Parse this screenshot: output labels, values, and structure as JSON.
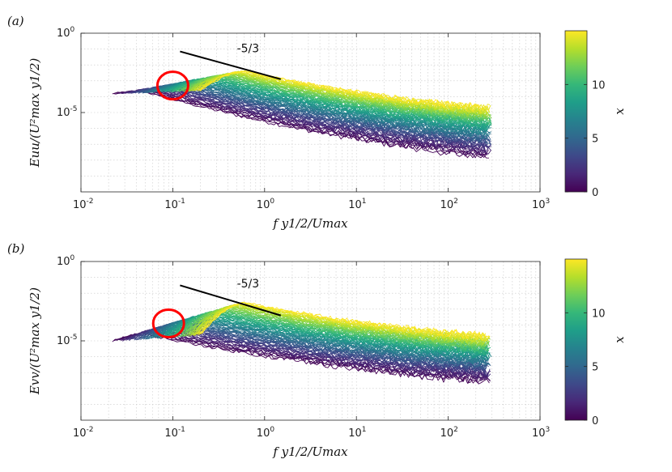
{
  "colors": {
    "viridis": [
      "#440154",
      "#482878",
      "#3e4989",
      "#31688e",
      "#26828e",
      "#1f9e89",
      "#35b779",
      "#6ece58",
      "#b5de2b",
      "#fde725"
    ],
    "circle": "#ff0000",
    "slope_line": "#000000"
  },
  "chart_data": [
    {
      "type": "line",
      "panel_label": "(a)",
      "xscale": "log",
      "yscale": "log",
      "xlim": [
        0.01,
        1000
      ],
      "ylim_exponent": [
        -10,
        0
      ],
      "x_ticks": [
        {
          "base": "10",
          "exp": "-2"
        },
        {
          "base": "10",
          "exp": "-1"
        },
        {
          "base": "10",
          "exp": "0"
        },
        {
          "base": "10",
          "exp": "1"
        },
        {
          "base": "10",
          "exp": "2"
        },
        {
          "base": "10",
          "exp": "3"
        }
      ],
      "y_ticks": [
        {
          "base": "10",
          "exp": "0",
          "value": 0
        },
        {
          "base": "10",
          "exp": "-5",
          "value": -5
        }
      ],
      "xlabel": "f y1/2/Umax",
      "ylabel": "Euu/(U²max y1/2)",
      "grid": true,
      "slope_annotation": {
        "label": "-5/3",
        "x_start": 0.12,
        "y_start_exp": -1.15,
        "x_end": 1.5,
        "y_end_exp": -2.9
      },
      "circle_annotation": {
        "x_center": 0.1,
        "y_center_exp": -3.3,
        "color": "red"
      },
      "curves": {
        "count": 90,
        "x_start_range": [
          0.022,
          0.2
        ],
        "x_end": 270,
        "y_start_exp_range": [
          -3.8,
          -3.6
        ],
        "peak_exp_range": [
          -3.7,
          -2.4
        ],
        "end_exp_range": [
          -7.8,
          -4.7
        ]
      },
      "colorbar": {
        "label": "x",
        "min": 0,
        "max": 15,
        "ticks": [
          "0",
          "5",
          "10"
        ],
        "colormap": "viridis"
      }
    },
    {
      "type": "line",
      "panel_label": "(b)",
      "xscale": "log",
      "yscale": "log",
      "xlim": [
        0.01,
        1000
      ],
      "ylim_exponent": [
        -10,
        0
      ],
      "x_ticks": [
        {
          "base": "10",
          "exp": "-2"
        },
        {
          "base": "10",
          "exp": "-1"
        },
        {
          "base": "10",
          "exp": "0"
        },
        {
          "base": "10",
          "exp": "1"
        },
        {
          "base": "10",
          "exp": "2"
        },
        {
          "base": "10",
          "exp": "3"
        }
      ],
      "y_ticks": [
        {
          "base": "10",
          "exp": "0",
          "value": 0
        },
        {
          "base": "10",
          "exp": "-5",
          "value": -5
        }
      ],
      "xlabel": "f y1/2/Umax",
      "ylabel": "Evv/(U²max y1/2)",
      "grid": true,
      "slope_annotation": {
        "label": "-5/3",
        "x_start": 0.12,
        "y_start_exp": -1.5,
        "x_end": 1.5,
        "y_end_exp": -3.4
      },
      "circle_annotation": {
        "x_center": 0.09,
        "y_center_exp": -3.9,
        "color": "red"
      },
      "curves": {
        "count": 90,
        "x_start_range": [
          0.022,
          0.2
        ],
        "x_end": 270,
        "y_start_exp_range": [
          -5.0,
          -4.6
        ],
        "peak_exp_range": [
          -4.6,
          -2.6
        ],
        "end_exp_range": [
          -7.6,
          -4.7
        ]
      },
      "colorbar": {
        "label": "x",
        "min": 0,
        "max": 15,
        "ticks": [
          "0",
          "5",
          "10"
        ],
        "colormap": "viridis"
      }
    }
  ]
}
